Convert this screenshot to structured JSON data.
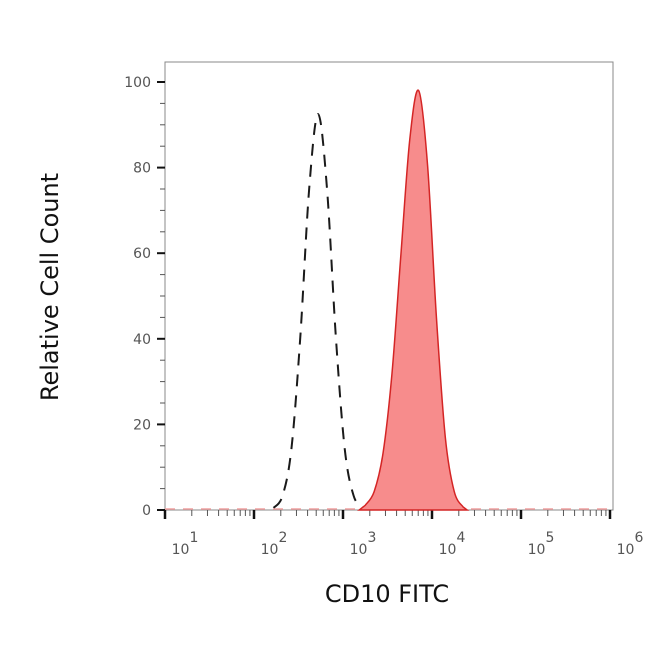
{
  "chart_data": {
    "type": "area",
    "title": "",
    "xlabel": "CD10 FITC",
    "ylabel": "Relative Cell Count",
    "xscale": "log",
    "xlim": [
      10,
      1000000
    ],
    "ylim": [
      0,
      100
    ],
    "x_ticks": [
      {
        "base": "10",
        "exp": "1",
        "value": 10
      },
      {
        "base": "10",
        "exp": "2",
        "value": 100
      },
      {
        "base": "10",
        "exp": "3",
        "value": 1000
      },
      {
        "base": "10",
        "exp": "4",
        "value": 10000
      },
      {
        "base": "10",
        "exp": "5",
        "value": 100000
      },
      {
        "base": "10",
        "exp": "6",
        "value": 1000000
      }
    ],
    "y_ticks": [
      "0",
      "20",
      "40",
      "60",
      "80",
      "100"
    ],
    "grid": false,
    "series": [
      {
        "style": "dashed-line",
        "color": "#1a1a1a",
        "points": [
          [
            166,
            0.5
          ],
          [
            209,
            3.3
          ],
          [
            263,
            14.2
          ],
          [
            331,
            40.3
          ],
          [
            417,
            75.1
          ],
          [
            525,
            92.5
          ],
          [
            661,
            75.1
          ],
          [
            832,
            40.3
          ],
          [
            1047,
            14.2
          ],
          [
            1318,
            3.3
          ],
          [
            1660,
            0.5
          ]
        ]
      },
      {
        "style": "filled-area",
        "color": "#d42525",
        "fill": "#f78c8c",
        "points": [
          [
            1778,
            1.1
          ],
          [
            2239,
            4.3
          ],
          [
            2818,
            13.3
          ],
          [
            3548,
            31.8
          ],
          [
            4467,
            59.5
          ],
          [
            5623,
            86.5
          ],
          [
            7079,
            98
          ],
          [
            8913,
            80.6
          ],
          [
            11220,
            44.9
          ],
          [
            14125,
            16.9
          ],
          [
            17783,
            4.3
          ],
          [
            22387,
            0.7
          ]
        ]
      }
    ]
  }
}
